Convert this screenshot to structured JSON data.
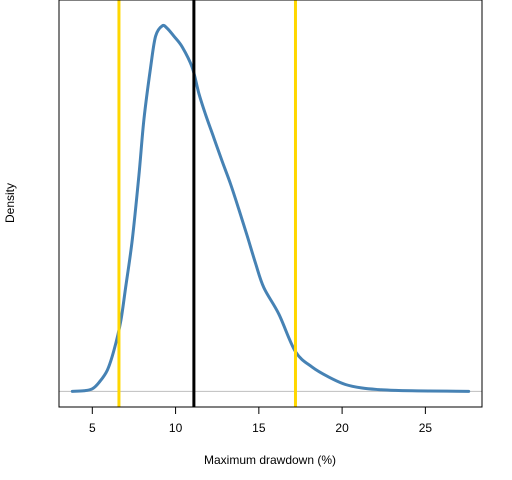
{
  "chart_data": {
    "type": "line",
    "title": "",
    "xlabel": "Maximum drawdown (%)",
    "ylabel": "Density",
    "xlim": [
      3,
      28.4
    ],
    "ylim": [
      -0.008,
      0.2
    ],
    "xticks": [
      5,
      10,
      15,
      20,
      25
    ],
    "grid": false,
    "legend": "none",
    "baseline": 0,
    "series": [
      {
        "color": "#4682B4",
        "x": [
          3.8,
          4.5,
          5.0,
          5.4,
          5.9,
          6.3,
          6.7,
          7.0,
          7.4,
          7.8,
          8.1,
          8.5,
          8.8,
          9.2,
          9.5,
          9.9,
          10.4,
          11.0,
          11.4,
          11.8,
          12.3,
          12.8,
          13.3,
          13.8,
          14.3,
          14.8,
          15.3,
          16.2,
          17.2,
          18.2,
          19.2,
          20.2,
          21.2,
          22.2,
          23.2,
          24.2,
          25.2,
          26.3,
          27.6
        ],
        "y": [
          0,
          0.0003,
          0.0013,
          0.0045,
          0.0108,
          0.021,
          0.0355,
          0.053,
          0.0775,
          0.1105,
          0.139,
          0.1655,
          0.1815,
          0.1868,
          0.1855,
          0.1815,
          0.176,
          0.1655,
          0.1522,
          0.1415,
          0.1295,
          0.1175,
          0.106,
          0.093,
          0.0795,
          0.0655,
          0.053,
          0.0395,
          0.0203,
          0.0124,
          0.0073,
          0.0035,
          0.0017,
          0.0009,
          0.0005,
          0.0003,
          0.0002,
          0.0001,
          0
        ]
      }
    ],
    "vlines": [
      {
        "x": 6.6,
        "color": "#FFD700"
      },
      {
        "x": 11.1,
        "color": "#000000"
      },
      {
        "x": 17.2,
        "color": "#FFD700"
      }
    ]
  }
}
